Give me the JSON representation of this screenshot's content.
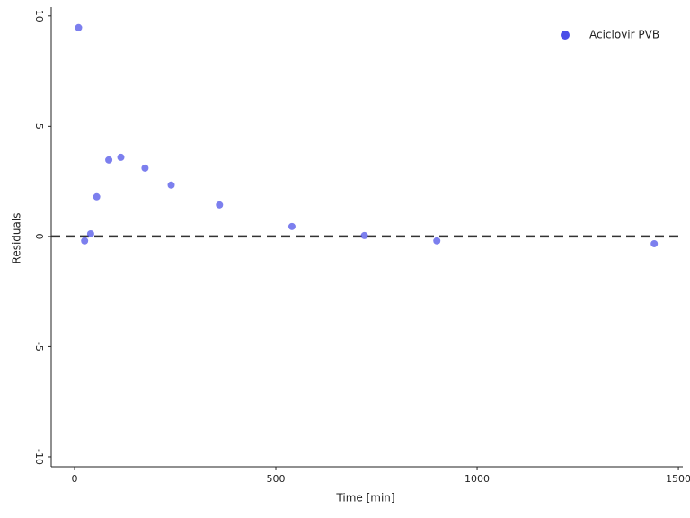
{
  "chart_data": {
    "type": "scatter",
    "xlabel": "Time [min]",
    "ylabel": "Residuals",
    "series": [
      {
        "name": "Aciclovir PVB",
        "color": "#4a4ee8",
        "x": [
          10,
          25,
          40,
          55,
          85,
          115,
          175,
          240,
          360,
          540,
          720,
          900,
          1440
        ],
        "values": [
          9.47,
          -0.2,
          0.12,
          1.8,
          3.47,
          3.59,
          3.1,
          2.33,
          1.43,
          0.45,
          0.04,
          -0.2,
          -0.33
        ]
      }
    ],
    "xlim": [
      -58,
      1511
    ],
    "xticks": [
      0,
      500,
      1000,
      1500
    ],
    "ylim": [
      -10.45,
      10.4
    ],
    "yticks": [
      -10,
      -5,
      0,
      5,
      10
    ],
    "hline": 0,
    "legend": "top-right",
    "grid": false
  }
}
